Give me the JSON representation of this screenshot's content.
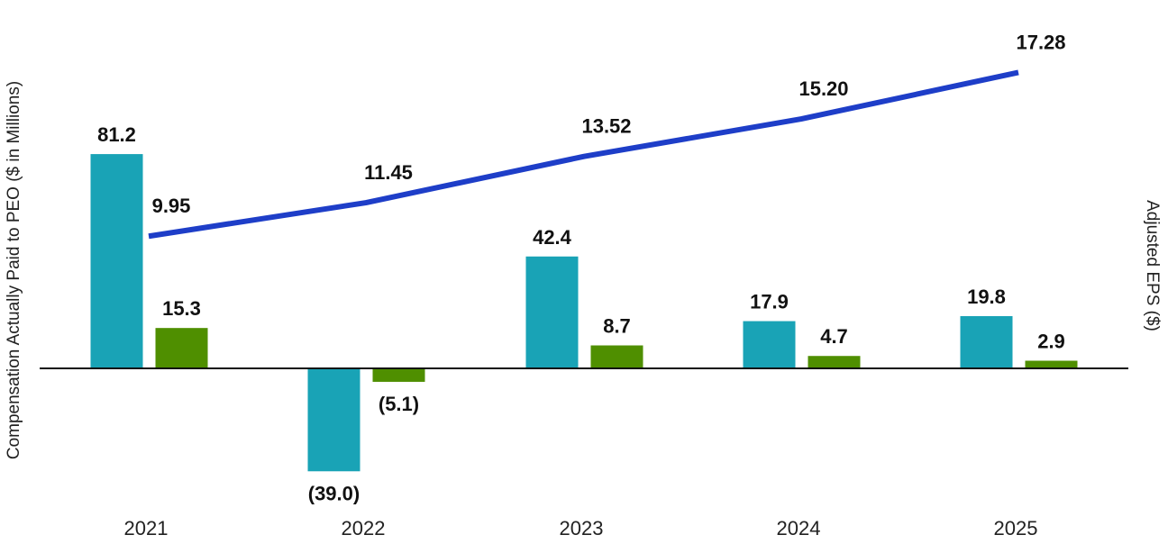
{
  "chart_data": {
    "type": "bar",
    "categories": [
      "2021",
      "2022",
      "2023",
      "2024",
      "2025"
    ],
    "ylabel": "Compensation Actually Paid to PEO ($ in Millions)",
    "y2label": "Adjusted EPS ($)",
    "series": [
      {
        "type": "bar",
        "color": "#19a3b6",
        "values": [
          81.2,
          -39.0,
          42.4,
          17.9,
          19.8
        ],
        "labels": [
          "81.2",
          "(39.0)",
          "42.4",
          "17.9",
          "19.8"
        ]
      },
      {
        "type": "bar",
        "color": "#4f8f00",
        "values": [
          15.3,
          -5.1,
          8.7,
          4.7,
          2.9
        ],
        "labels": [
          "15.3",
          "(5.1)",
          "8.7",
          "4.7",
          "2.9"
        ]
      },
      {
        "type": "line",
        "axis": "right",
        "color": "#1e3ec8",
        "values": [
          9.95,
          11.45,
          13.52,
          15.2,
          17.28
        ],
        "labels": [
          "9.95",
          "11.45",
          "13.52",
          "15.20",
          "17.28"
        ]
      }
    ],
    "ylim": [
      -50,
      140
    ],
    "y2lim": [
      0,
      18.5
    ],
    "grid": false,
    "legend": "none"
  }
}
